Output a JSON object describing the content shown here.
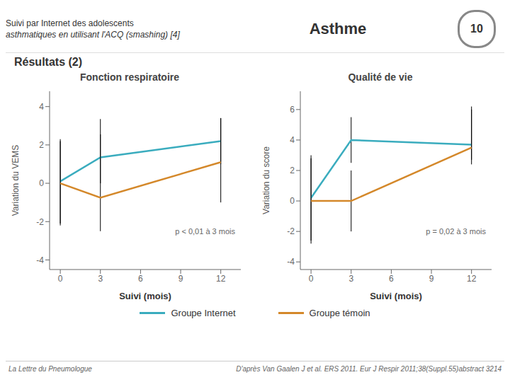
{
  "title": "Asthme",
  "subtitle": [
    "Suivi par Internet des adolescents",
    "asthmatiques en utilisant l'ACQ (smashing) [4]"
  ],
  "annotations": [
    "10",
    "Résultats (2)",
    "La Lettre du Pneumologue",
    "D'après Van Gaalen J et al. ERS 2011. Eur J Respir 2011;38(Suppl.55)abstract 3214"
  ],
  "chart_data": [
    {
      "type": "line",
      "title": "Fonction respiratoire",
      "xlabel": "Suivi (mois)",
      "ylabel": "Variation du VEMS",
      "x": [
        0,
        3,
        12
      ],
      "xlim": [
        -0.8,
        13.5
      ],
      "xticks": [
        0,
        3,
        6,
        9,
        12
      ],
      "ylim": [
        -4.5,
        4.8
      ],
      "yticks": [
        -4,
        -2,
        0,
        2,
        4
      ],
      "legend": "bottom",
      "annotations": [
        "p < 0,01 à 3 mois"
      ],
      "series": [
        {
          "name": "Groupe Internet",
          "color": "#3aacbe",
          "values": [
            0.1,
            1.35,
            2.2
          ],
          "error_low": [
            2.2,
            1.35,
            1.2
          ],
          "error_high": [
            2.2,
            2.0,
            1.2
          ]
        },
        {
          "name": "Groupe témoin",
          "color": "#d4882a",
          "values": [
            0.0,
            -0.75,
            1.1
          ],
          "error_low": [
            2.2,
            1.75,
            2.1
          ],
          "error_high": [
            2.2,
            3.3,
            2.3
          ]
        }
      ]
    },
    {
      "type": "line",
      "title": "Qualité de vie",
      "xlabel": "Suivi (mois)",
      "ylabel": "Variation du score",
      "x": [
        0,
        3,
        12
      ],
      "xlim": [
        -0.8,
        13.5
      ],
      "xticks": [
        0,
        3,
        6,
        9,
        12
      ],
      "ylim": [
        -4.5,
        7.2
      ],
      "yticks": [
        -4,
        -2,
        0,
        2,
        4,
        6
      ],
      "legend": "bottom",
      "annotations": [
        "p = 0,02 à 3 mois"
      ],
      "series": [
        {
          "name": "Groupe Internet",
          "color": "#3aacbe",
          "values": [
            0.2,
            4.0,
            3.7
          ],
          "error_low": [
            2.8,
            1.5,
            1.3
          ],
          "error_high": [
            2.8,
            1.5,
            2.5
          ]
        },
        {
          "name": "Groupe témoin",
          "color": "#d4882a",
          "values": [
            0.0,
            0.0,
            3.5
          ],
          "error_low": [
            2.8,
            2.0,
            0.8
          ],
          "error_high": [
            2.8,
            2.0,
            2.5
          ]
        }
      ]
    }
  ]
}
